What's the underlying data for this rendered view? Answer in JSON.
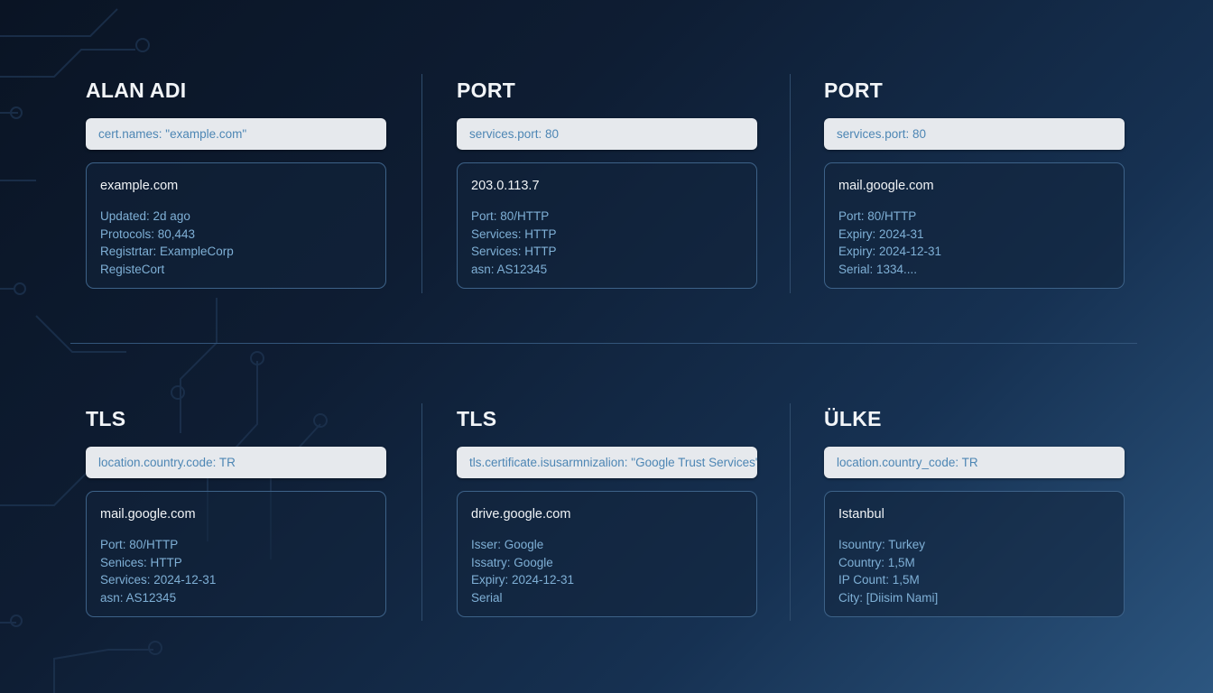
{
  "colors": {
    "accent": "#7fb0d6",
    "query_text": "#4d86b4",
    "card_border": "#3d6288"
  },
  "panels": [
    {
      "title": "ALAN ADI",
      "query": "cert.names: \"example.com\"",
      "card": {
        "title": "example.com",
        "lines": [
          "Updated: 2d ago",
          "Protocols: 80,443",
          "Registrtar: ExampleCorp",
          "RegisteCort"
        ]
      }
    },
    {
      "title": "PORT",
      "query": "services.port: 80",
      "card": {
        "title": "203.0.113.7",
        "lines": [
          "Port: 80/HTTP",
          "Services: HTTP",
          "Services: HTTP",
          "asn: AS12345"
        ]
      }
    },
    {
      "title": "PORT",
      "query": "services.port: 80",
      "card": {
        "title": "mail.google.com",
        "lines": [
          "Port: 80/HTTP",
          "Expiry: 2024-31",
          "Expiry: 2024-12-31",
          "Serial: 1334...."
        ]
      }
    },
    {
      "title": "TLS",
      "query": "location.country.code: TR",
      "card": {
        "title": "mail.google.com",
        "lines": [
          "Port: 80/HTTP",
          "Senices: HTTP",
          "Services: 2024-12-31",
          "asn: AS12345"
        ]
      }
    },
    {
      "title": "TLS",
      "query": "tls.certificate.isusarmnizalion: \"Google Trust Services\"",
      "card": {
        "title": "drive.google.com",
        "lines": [
          "Isser: Google",
          "Issatry: Google",
          "Expiry: 2024-12-31",
          "Serial"
        ]
      }
    },
    {
      "title": "ÜLKE",
      "query": "location.country_code: TR",
      "card": {
        "title": "Istanbul",
        "lines": [
          "Isountry: Turkey",
          "Country: 1,5M",
          "IP Count: 1,5M",
          "City: [Diisim Nami]"
        ]
      }
    }
  ]
}
